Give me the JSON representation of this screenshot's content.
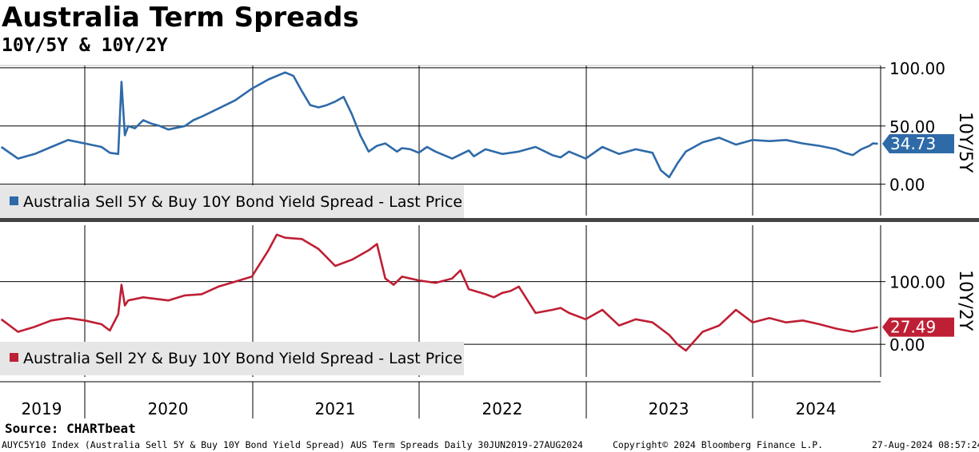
{
  "title": "Australia Term Spreads",
  "subtitle": "10Y/5Y & 10Y/2Y",
  "source": "Source: CHARTbeat",
  "footer": {
    "left": "AUYC5Y10 Index (Australia Sell 5Y & Buy 10Y Bond Yield Spread) AUS Term Spreads  Daily 30JUN2019-27AUG2024",
    "center": "Copyright© 2024 Bloomberg Finance L.P.",
    "right": "27-Aug-2024 08:57:24"
  },
  "colors": {
    "series1": "#2e6aa8",
    "series2": "#be1f34"
  },
  "chart_data": [
    {
      "type": "line",
      "title": "Australia Sell 5Y & Buy 10Y Bond Yield Spread - Last Price",
      "axis_label": "10Y/5Y",
      "ylim": [
        -27,
        102
      ],
      "yticks": [
        0,
        50,
        100
      ],
      "ytick_labels": [
        "0.00",
        "50.00",
        "100.00"
      ],
      "xlim": [
        2019.5,
        2024.82
      ],
      "xticks": [
        2019,
        2020,
        2021,
        2022,
        2023,
        2024
      ],
      "xtick_labels": [
        "2019",
        "2020",
        "2021",
        "2022",
        "2023",
        "2024"
      ],
      "last_value": 34.73,
      "last_label": "34.73",
      "legend": "Australia Sell 5Y & Buy 10Y Bond Yield Spread - Last Price",
      "x": [
        2019.5,
        2019.6,
        2019.7,
        2019.8,
        2019.9,
        2020.0,
        2020.1,
        2020.15,
        2020.2,
        2020.22,
        2020.24,
        2020.26,
        2020.3,
        2020.35,
        2020.4,
        2020.45,
        2020.5,
        2020.6,
        2020.65,
        2020.7,
        2020.8,
        2020.9,
        2021.0,
        2021.1,
        2021.2,
        2021.25,
        2021.3,
        2021.35,
        2021.4,
        2021.45,
        2021.5,
        2021.55,
        2021.6,
        2021.65,
        2021.7,
        2021.75,
        2021.8,
        2021.85,
        2021.87,
        2021.9,
        2021.95,
        2022.0,
        2022.05,
        2022.1,
        2022.2,
        2022.3,
        2022.33,
        2022.4,
        2022.5,
        2022.6,
        2022.7,
        2022.8,
        2022.85,
        2022.9,
        2023.0,
        2023.1,
        2023.2,
        2023.3,
        2023.4,
        2023.45,
        2023.5,
        2023.55,
        2023.6,
        2023.7,
        2023.8,
        2023.9,
        2024.0,
        2024.1,
        2024.2,
        2024.3,
        2024.4,
        2024.5,
        2024.55,
        2024.6,
        2024.65,
        2024.7,
        2024.72,
        2024.75
      ],
      "values": [
        32,
        22,
        26,
        32,
        38,
        35,
        32,
        27,
        26,
        88,
        42,
        50,
        48,
        55,
        52,
        50,
        47,
        50,
        55,
        58,
        65,
        72,
        82,
        90,
        96,
        93,
        80,
        68,
        66,
        68,
        71,
        75,
        60,
        42,
        28,
        33,
        35,
        30,
        28,
        31,
        30,
        27,
        32,
        28,
        22,
        29,
        24,
        30,
        26,
        28,
        32,
        25,
        23,
        28,
        22,
        32,
        26,
        30,
        27,
        12,
        6,
        18,
        28,
        36,
        40,
        34,
        38,
        37,
        38,
        35,
        33,
        30,
        27,
        25,
        30,
        33,
        35,
        34.73
      ]
    },
    {
      "type": "line",
      "title": "Australia Sell 2Y & Buy 10Y Bond Yield Spread - Last Price",
      "axis_label": "10Y/2Y",
      "ylim": [
        -52,
        190
      ],
      "yticks": [
        0,
        100
      ],
      "ytick_labels": [
        "0.00",
        "100.00"
      ],
      "xlim": [
        2019.5,
        2024.82
      ],
      "xticks": [
        2019,
        2020,
        2021,
        2022,
        2023,
        2024
      ],
      "xtick_labels": [
        "2019",
        "2020",
        "2021",
        "2022",
        "2023",
        "2024"
      ],
      "last_value": 27.49,
      "last_label": "27.49",
      "legend": "Australia Sell 2Y & Buy 10Y Bond Yield Spread - Last Price",
      "x": [
        2019.5,
        2019.6,
        2019.7,
        2019.8,
        2019.9,
        2020.0,
        2020.1,
        2020.15,
        2020.2,
        2020.22,
        2020.24,
        2020.26,
        2020.35,
        2020.5,
        2020.6,
        2020.7,
        2020.8,
        2020.9,
        2021.0,
        2021.1,
        2021.15,
        2021.2,
        2021.3,
        2021.4,
        2021.5,
        2021.6,
        2021.7,
        2021.75,
        2021.8,
        2021.85,
        2021.9,
        2022.0,
        2022.1,
        2022.2,
        2022.25,
        2022.3,
        2022.4,
        2022.45,
        2022.5,
        2022.55,
        2022.6,
        2022.7,
        2022.8,
        2022.85,
        2022.9,
        2023.0,
        2023.1,
        2023.2,
        2023.3,
        2023.4,
        2023.45,
        2023.5,
        2023.55,
        2023.6,
        2023.7,
        2023.8,
        2023.9,
        2024.0,
        2024.1,
        2024.2,
        2024.3,
        2024.4,
        2024.5,
        2024.6,
        2024.7,
        2024.75
      ],
      "values": [
        40,
        20,
        28,
        38,
        42,
        38,
        32,
        22,
        48,
        95,
        62,
        70,
        75,
        70,
        78,
        80,
        92,
        100,
        108,
        150,
        175,
        170,
        168,
        152,
        125,
        135,
        150,
        160,
        105,
        95,
        108,
        102,
        98,
        105,
        118,
        88,
        80,
        75,
        82,
        85,
        92,
        50,
        55,
        58,
        50,
        40,
        55,
        30,
        40,
        35,
        25,
        15,
        0,
        -10,
        20,
        30,
        55,
        35,
        42,
        35,
        38,
        32,
        25,
        20,
        25,
        27.49
      ]
    }
  ]
}
